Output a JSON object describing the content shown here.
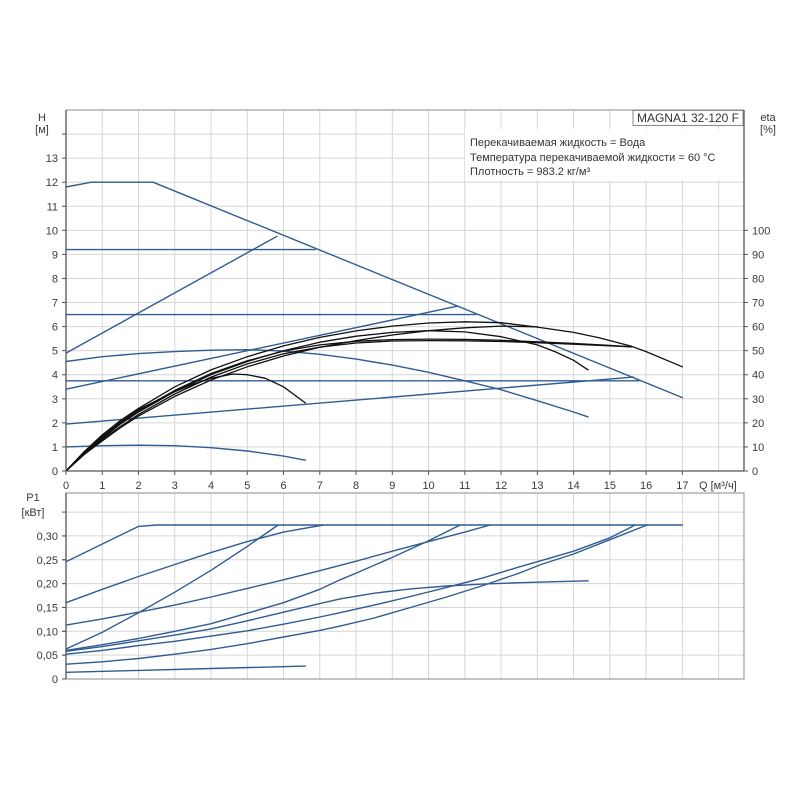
{
  "info_box": {
    "model": "MAGNA1 32-120 F",
    "lines": [
      "Перекачиваемая жидкость = Вода",
      "Температура перекачиваемой жидкости = 60 °C",
      "Плотность = 983.2 кг/м³"
    ]
  },
  "colors": {
    "pump_curve": "#2f5c92",
    "efficiency_curve": "#111111",
    "grid": "#d6d6d6",
    "axis": "#555555",
    "border": "#8a8a8a"
  },
  "chart_data": [
    {
      "type": "line",
      "title": "",
      "xlabel": "Q [м³/ч]",
      "ylabel": "H",
      "ylabel_unit": "[м]",
      "y2label": "eta",
      "y2label_unit": "[%]",
      "xlim": [
        0,
        18.7
      ],
      "ylim": [
        0,
        15
      ],
      "y2lim": [
        0,
        150
      ],
      "grid": true,
      "x_ticks": [
        "0",
        "1",
        "2",
        "3",
        "4",
        "5",
        "6",
        "7",
        "8",
        "9",
        "10",
        "11",
        "12",
        "13",
        "14",
        "15",
        "16",
        "17"
      ],
      "y_ticks": [
        "0",
        "1",
        "2",
        "3",
        "4",
        "5",
        "6",
        "7",
        "8",
        "9",
        "10",
        "11",
        "12",
        "13"
      ],
      "y2_ticks": [
        "0",
        "10",
        "20",
        "30",
        "40",
        "50",
        "60",
        "70",
        "80",
        "90",
        "100"
      ],
      "head_curves": [
        [
          [
            0,
            11.8
          ],
          [
            0.7,
            12.0
          ],
          [
            2.4,
            12.0
          ],
          [
            17,
            3.05
          ]
        ],
        [
          [
            0,
            9.2
          ],
          [
            6.87,
            9.2
          ]
        ],
        [
          [
            0,
            4.9
          ],
          [
            5.82,
            9.75
          ]
        ],
        [
          [
            0,
            6.5
          ],
          [
            11.3,
            6.5
          ]
        ],
        [
          [
            0,
            3.4
          ],
          [
            10.8,
            6.85
          ]
        ],
        [
          [
            0,
            3.75
          ],
          [
            15.8,
            3.75
          ]
        ],
        [
          [
            0,
            1.95
          ],
          [
            15.65,
            3.9
          ]
        ],
        [
          [
            0,
            4.55
          ],
          [
            1,
            4.75
          ],
          [
            2,
            4.88
          ],
          [
            3,
            4.96
          ],
          [
            4,
            5.02
          ],
          [
            5,
            5.04
          ],
          [
            6,
            4.98
          ],
          [
            7,
            4.85
          ],
          [
            8,
            4.65
          ],
          [
            9,
            4.4
          ],
          [
            10,
            4.1
          ],
          [
            11,
            3.75
          ],
          [
            12,
            3.38
          ],
          [
            13,
            2.92
          ],
          [
            14,
            2.45
          ],
          [
            14.4,
            2.25
          ]
        ],
        [
          [
            0,
            1.0
          ],
          [
            1,
            1.05
          ],
          [
            2,
            1.07
          ],
          [
            3,
            1.05
          ],
          [
            4,
            0.97
          ],
          [
            5,
            0.83
          ],
          [
            6,
            0.62
          ],
          [
            6.6,
            0.45
          ]
        ]
      ],
      "efficiency_curves": [
        [
          [
            0,
            0
          ],
          [
            0.5,
            8
          ],
          [
            1,
            15
          ],
          [
            1.5,
            21
          ],
          [
            2,
            26
          ],
          [
            3,
            35
          ],
          [
            4,
            42
          ],
          [
            5,
            47.5
          ],
          [
            6,
            52
          ],
          [
            7,
            55.5
          ],
          [
            8,
            58.2
          ],
          [
            9,
            60.2
          ],
          [
            10,
            61.5
          ],
          [
            11,
            62
          ],
          [
            12,
            61.6
          ],
          [
            13,
            59.8
          ],
          [
            14,
            57.6
          ],
          [
            14.7,
            55.4
          ],
          [
            15.6,
            51.8
          ],
          [
            16,
            49.6
          ],
          [
            17,
            43.3
          ]
        ],
        [
          [
            0,
            0
          ],
          [
            0.5,
            7.5
          ],
          [
            1,
            14
          ],
          [
            1.5,
            20
          ],
          [
            2,
            25
          ],
          [
            3,
            33.5
          ],
          [
            4,
            40.5
          ],
          [
            5,
            45.8
          ],
          [
            6,
            49.8
          ],
          [
            7,
            52.4
          ],
          [
            8,
            53.9
          ],
          [
            9,
            54.6
          ],
          [
            10,
            54.8
          ],
          [
            11,
            54.7
          ],
          [
            12,
            54.3
          ],
          [
            13,
            53.7
          ],
          [
            14,
            53
          ],
          [
            15,
            52.2
          ],
          [
            15.6,
            51.6
          ]
        ],
        [
          [
            0,
            0
          ],
          [
            0.5,
            7.2
          ],
          [
            1,
            13.5
          ],
          [
            1.5,
            19.5
          ],
          [
            2,
            24.5
          ],
          [
            3,
            33
          ],
          [
            4,
            40
          ],
          [
            5,
            45.5
          ],
          [
            6,
            50
          ],
          [
            7,
            53.5
          ],
          [
            8,
            56
          ],
          [
            9,
            57.6
          ],
          [
            10,
            58.3
          ],
          [
            11,
            57.8
          ],
          [
            12,
            55.8
          ],
          [
            13,
            52.4
          ],
          [
            13.5,
            49.5
          ],
          [
            14,
            46
          ],
          [
            14.4,
            42
          ]
        ],
        [
          [
            0,
            0
          ],
          [
            0.5,
            7
          ],
          [
            1,
            13
          ],
          [
            1.5,
            18.5
          ],
          [
            2,
            23.5
          ],
          [
            3,
            32
          ],
          [
            4,
            39
          ],
          [
            5,
            44.5
          ],
          [
            6,
            48.7
          ],
          [
            7,
            51.5
          ],
          [
            8,
            53.2
          ],
          [
            9,
            54
          ],
          [
            10,
            54.2
          ],
          [
            11,
            54.1
          ],
          [
            12,
            53.8
          ],
          [
            13,
            53.3
          ],
          [
            14,
            52.7
          ],
          [
            15,
            52
          ],
          [
            15.6,
            51.6
          ]
        ],
        [
          [
            0,
            0
          ],
          [
            0.5,
            6.8
          ],
          [
            1,
            12.5
          ],
          [
            1.5,
            18
          ],
          [
            2,
            22.8
          ],
          [
            3,
            31
          ],
          [
            4,
            37.8
          ],
          [
            5,
            43.3
          ],
          [
            6,
            47.8
          ],
          [
            7,
            51.4
          ],
          [
            8,
            54.2
          ],
          [
            9,
            56.5
          ],
          [
            10,
            58.3
          ],
          [
            11,
            59.5
          ],
          [
            12,
            60.2
          ],
          [
            13,
            59.9
          ]
        ],
        [
          [
            0,
            0
          ],
          [
            0.5,
            7.8
          ],
          [
            1,
            14.5
          ],
          [
            1.5,
            20.5
          ],
          [
            2,
            25.5
          ],
          [
            3,
            33
          ],
          [
            3.5,
            36
          ],
          [
            4,
            38.5
          ],
          [
            4.6,
            40.3
          ],
          [
            5,
            40
          ],
          [
            5.5,
            38.5
          ],
          [
            6,
            35
          ],
          [
            6.6,
            28.3
          ]
        ]
      ]
    },
    {
      "type": "line",
      "title": "",
      "xlabel": "",
      "ylabel": "P1",
      "ylabel_unit": "[кВт]",
      "xlim": [
        0,
        18.7
      ],
      "ylim": [
        0,
        0.39
      ],
      "grid": true,
      "y_ticks": [
        "0",
        "0,05",
        "0,10",
        "0,15",
        "0,20",
        "0,25",
        "0,30"
      ],
      "power_curves": [
        [
          [
            0,
            0.246
          ],
          [
            2,
            0.32
          ],
          [
            2.5,
            0.323
          ],
          [
            17,
            0.323
          ]
        ],
        [
          [
            0,
            0.16
          ],
          [
            1,
            0.188
          ],
          [
            2,
            0.215
          ],
          [
            3,
            0.24
          ],
          [
            4,
            0.265
          ],
          [
            5,
            0.288
          ],
          [
            6,
            0.308
          ],
          [
            7.1,
            0.323
          ]
        ],
        [
          [
            0,
            0.063
          ],
          [
            1,
            0.098
          ],
          [
            2,
            0.139
          ],
          [
            3,
            0.182
          ],
          [
            4,
            0.228
          ],
          [
            5,
            0.278
          ],
          [
            5.85,
            0.323
          ]
        ],
        [
          [
            0,
            0.113
          ],
          [
            1,
            0.126
          ],
          [
            2,
            0.14
          ],
          [
            3,
            0.155
          ],
          [
            4,
            0.172
          ],
          [
            5,
            0.19
          ],
          [
            6,
            0.208
          ],
          [
            7,
            0.227
          ],
          [
            8,
            0.247
          ],
          [
            9,
            0.268
          ],
          [
            10,
            0.288
          ],
          [
            11,
            0.308
          ],
          [
            11.7,
            0.323
          ]
        ],
        [
          [
            0,
            0.06
          ],
          [
            1,
            0.072
          ],
          [
            2,
            0.085
          ],
          [
            3,
            0.1
          ],
          [
            4,
            0.116
          ],
          [
            5,
            0.138
          ],
          [
            6,
            0.16
          ],
          [
            7,
            0.188
          ],
          [
            7.56,
            0.208
          ],
          [
            8,
            0.222
          ],
          [
            9,
            0.255
          ],
          [
            10,
            0.29
          ],
          [
            10.87,
            0.323
          ]
        ],
        [
          [
            0,
            0.058
          ],
          [
            1,
            0.068
          ],
          [
            2,
            0.08
          ],
          [
            3,
            0.092
          ],
          [
            4,
            0.105
          ],
          [
            5,
            0.122
          ],
          [
            6,
            0.14
          ],
          [
            7,
            0.158
          ],
          [
            7.56,
            0.168
          ],
          [
            8.5,
            0.18
          ],
          [
            9.5,
            0.189
          ],
          [
            10.5,
            0.195
          ],
          [
            11.5,
            0.199
          ],
          [
            12.5,
            0.202
          ],
          [
            13.5,
            0.204
          ],
          [
            14.4,
            0.206
          ]
        ],
        [
          [
            0,
            0.052
          ],
          [
            1,
            0.06
          ],
          [
            2,
            0.07
          ],
          [
            3,
            0.079
          ],
          [
            4,
            0.09
          ],
          [
            5,
            0.101
          ],
          [
            6,
            0.115
          ],
          [
            7,
            0.13
          ],
          [
            7.56,
            0.139
          ],
          [
            8.5,
            0.155
          ],
          [
            9.5,
            0.173
          ],
          [
            10.5,
            0.192
          ],
          [
            11.5,
            0.212
          ],
          [
            12.5,
            0.235
          ],
          [
            13.1,
            0.248
          ],
          [
            14,
            0.268
          ],
          [
            15,
            0.296
          ],
          [
            15.7,
            0.323
          ]
        ],
        [
          [
            0,
            0.031
          ],
          [
            1,
            0.036
          ],
          [
            2,
            0.043
          ],
          [
            3,
            0.052
          ],
          [
            4,
            0.062
          ],
          [
            5,
            0.074
          ],
          [
            6,
            0.088
          ],
          [
            7,
            0.102
          ],
          [
            7.56,
            0.111
          ],
          [
            8.5,
            0.128
          ],
          [
            9.5,
            0.15
          ],
          [
            10.5,
            0.172
          ],
          [
            11.5,
            0.196
          ],
          [
            12.5,
            0.222
          ],
          [
            13.1,
            0.24
          ],
          [
            14,
            0.262
          ],
          [
            15,
            0.292
          ],
          [
            16.03,
            0.323
          ]
        ],
        [
          [
            0,
            0.014
          ],
          [
            2,
            0.018
          ],
          [
            4,
            0.022
          ],
          [
            6.6,
            0.027
          ]
        ]
      ]
    }
  ]
}
